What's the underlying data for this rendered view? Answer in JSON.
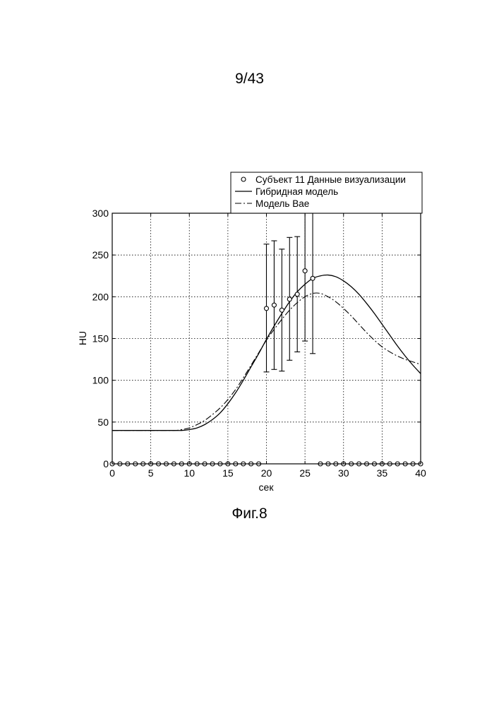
{
  "page_number": "9/43",
  "figure_caption": "Фиг.8",
  "chart_data": {
    "type": "line",
    "xlabel": "сек",
    "ylabel": "HU",
    "xlim": [
      0,
      40
    ],
    "ylim": [
      0,
      300
    ],
    "xticks": [
      "0",
      "5",
      "10",
      "15",
      "20",
      "25",
      "30",
      "35",
      "40"
    ],
    "yticks": [
      "0",
      "50",
      "100",
      "150",
      "200",
      "250",
      "300"
    ],
    "grid": true,
    "legend_position": "top-right",
    "series": [
      {
        "name": "Субъект 11 Данные визуализации",
        "style": "circle-markers-with-errorbars",
        "x": [
          0,
          1,
          2,
          3,
          4,
          5,
          6,
          7,
          8,
          9,
          10,
          11,
          12,
          13,
          14,
          15,
          16,
          17,
          18,
          19,
          20,
          21,
          22,
          23,
          24,
          25,
          26,
          27,
          28,
          29,
          30,
          31,
          32,
          33,
          34,
          35,
          36,
          37,
          38,
          39,
          40
        ],
        "y": [
          0,
          0,
          0,
          0,
          0,
          0,
          0,
          0,
          0,
          0,
          0,
          0,
          0,
          0,
          0,
          0,
          0,
          0,
          0,
          0,
          186,
          190,
          184,
          197,
          203,
          231,
          222,
          0,
          0,
          0,
          0,
          0,
          0,
          0,
          0,
          0,
          0,
          0,
          0,
          0,
          0
        ],
        "error_low": [
          null,
          null,
          null,
          null,
          null,
          null,
          null,
          null,
          null,
          null,
          null,
          null,
          null,
          null,
          null,
          null,
          null,
          null,
          null,
          null,
          110,
          113,
          111,
          124,
          134,
          147,
          132,
          null,
          null,
          null,
          null,
          null,
          null,
          null,
          null,
          null,
          null,
          null,
          null,
          null,
          null
        ],
        "error_high": [
          null,
          null,
          null,
          null,
          null,
          null,
          null,
          null,
          null,
          null,
          null,
          null,
          null,
          null,
          null,
          null,
          null,
          null,
          null,
          null,
          263,
          267,
          257,
          271,
          272,
          300,
          300,
          null,
          null,
          null,
          null,
          null,
          null,
          null,
          null,
          null,
          null,
          null,
          null,
          null,
          null
        ]
      },
      {
        "name": "Гибридная модель",
        "style": "solid",
        "x": [
          0,
          5,
          8,
          9,
          10,
          11,
          12,
          13,
          14,
          15,
          16,
          17,
          18,
          19,
          20,
          21,
          22,
          23,
          24,
          25,
          26,
          27,
          28,
          29,
          30,
          31,
          32,
          33,
          34,
          35,
          36,
          37,
          38,
          39,
          40
        ],
        "y": [
          40,
          40,
          40,
          40,
          41,
          43,
          47,
          53,
          61,
          72,
          85,
          100,
          116,
          132,
          149,
          165,
          180,
          194,
          206,
          215,
          222,
          225,
          226,
          224,
          219,
          212,
          203,
          192,
          180,
          167,
          154,
          141,
          129,
          118,
          108
        ]
      },
      {
        "name": "Модель Bae",
        "style": "dash-dot",
        "x": [
          0,
          5,
          8,
          9,
          10,
          11,
          12,
          13,
          14,
          15,
          16,
          17,
          18,
          19,
          20,
          21,
          22,
          23,
          24,
          25,
          26,
          27,
          28,
          29,
          30,
          31,
          32,
          33,
          34,
          35,
          36,
          37,
          38,
          39,
          40
        ],
        "y": [
          40,
          40,
          40,
          41,
          43,
          47,
          52,
          59,
          67,
          77,
          89,
          103,
          118,
          133,
          148,
          161,
          173,
          184,
          193,
          200,
          204,
          204,
          200,
          194,
          186,
          177,
          167,
          157,
          148,
          140,
          134,
          129,
          125,
          122,
          119
        ]
      }
    ]
  }
}
